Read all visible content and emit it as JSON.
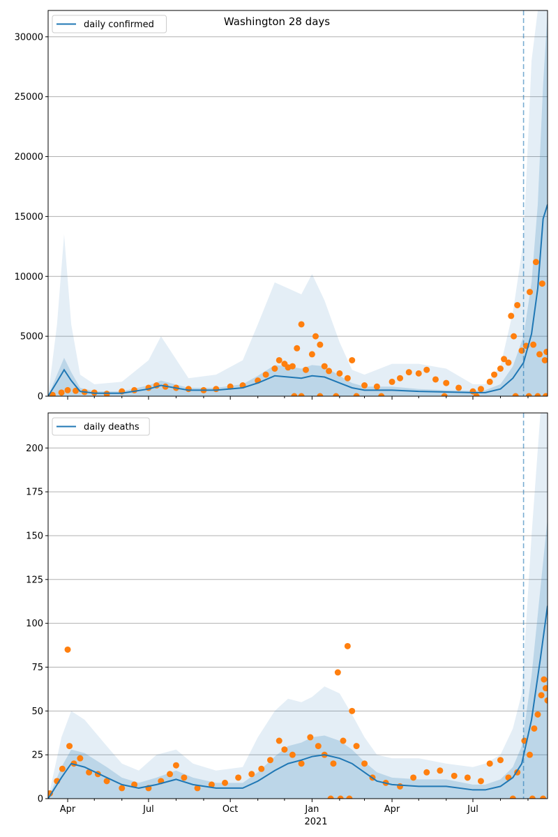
{
  "title": "Washington 28 days",
  "colors": {
    "model": "#1f77b4",
    "observed": "#ff7f0e",
    "band": "#1f77b4",
    "grid": "#b0b0b0",
    "forecast_line": "#1f77b4"
  },
  "x_axis": {
    "month_labels": [
      "Apr",
      "Jul",
      "Oct",
      "Jan",
      "Apr",
      "Jul"
    ],
    "year_label": "2021"
  },
  "forecast_start": "2021-08-27",
  "chart_data": [
    {
      "type": "line",
      "legend": "daily confirmed",
      "ylabel": "",
      "xlim": [
        "2020-03-10",
        "2021-09-23"
      ],
      "ylim": [
        0,
        32200
      ],
      "yticks": [
        0,
        5000,
        10000,
        15000,
        20000,
        25000,
        30000
      ],
      "grid": "horizontal",
      "legend_position": "top-left",
      "model": {
        "x": [
          "2020-03-10",
          "2020-03-20",
          "2020-03-28",
          "2020-04-05",
          "2020-04-15",
          "2020-05-01",
          "2020-06-01",
          "2020-07-01",
          "2020-07-15",
          "2020-08-15",
          "2020-09-15",
          "2020-10-15",
          "2020-11-01",
          "2020-11-20",
          "2020-12-05",
          "2020-12-20",
          "2021-01-01",
          "2021-01-15",
          "2021-02-01",
          "2021-02-15",
          "2021-03-01",
          "2021-04-01",
          "2021-05-01",
          "2021-06-01",
          "2021-07-01",
          "2021-07-15",
          "2021-08-01",
          "2021-08-15",
          "2021-08-27",
          "2021-09-05",
          "2021-09-12",
          "2021-09-18",
          "2021-09-23"
        ],
        "y": [
          0,
          1200,
          2200,
          1300,
          400,
          250,
          250,
          600,
          900,
          500,
          500,
          700,
          1100,
          1700,
          1600,
          1500,
          1700,
          1600,
          1100,
          700,
          500,
          500,
          400,
          350,
          300,
          300,
          600,
          1500,
          2800,
          5200,
          9000,
          14800,
          16000
        ]
      },
      "band_inner": [
        0,
        1800,
        3200,
        2000,
        700,
        400,
        400,
        900,
        1300,
        700,
        700,
        1000,
        1700,
        2600,
        2500,
        2300,
        2600,
        2500,
        1700,
        1100,
        800,
        800,
        600,
        500,
        450,
        500,
        1000,
        2500,
        5000,
        9500,
        16000,
        26000,
        32200
      ],
      "band_outer": [
        0,
        6000,
        13500,
        6000,
        1800,
        1000,
        1200,
        3000,
        5000,
        1500,
        1800,
        3000,
        6000,
        9500,
        9000,
        8500,
        10200,
        8000,
        4500,
        2200,
        1800,
        2700,
        2700,
        2300,
        1000,
        1000,
        2500,
        7000,
        13000,
        28000,
        32200,
        32200,
        32200
      ],
      "observed": {
        "x": [
          "2020-03-15",
          "2020-03-25",
          "2020-04-01",
          "2020-04-10",
          "2020-04-20",
          "2020-05-01",
          "2020-05-15",
          "2020-06-01",
          "2020-06-15",
          "2020-07-01",
          "2020-07-10",
          "2020-07-20",
          "2020-08-01",
          "2020-08-15",
          "2020-09-01",
          "2020-09-15",
          "2020-10-01",
          "2020-10-15",
          "2020-11-01",
          "2020-11-10",
          "2020-11-20",
          "2020-11-25",
          "2020-12-01",
          "2020-12-05",
          "2020-12-10",
          "2020-12-15",
          "2020-12-20",
          "2020-12-25",
          "2021-01-01",
          "2021-01-05",
          "2021-01-10",
          "2021-01-15",
          "2021-01-20",
          "2021-02-01",
          "2021-02-10",
          "2021-02-15",
          "2021-03-01",
          "2021-03-15",
          "2021-04-01",
          "2021-04-10",
          "2021-04-20",
          "2021-05-01",
          "2021-05-10",
          "2021-05-20",
          "2021-06-01",
          "2021-06-15",
          "2021-07-01",
          "2021-07-10",
          "2021-07-20",
          "2021-07-25",
          "2021-08-01",
          "2021-08-05",
          "2021-08-10",
          "2021-08-13",
          "2021-08-16",
          "2021-08-20",
          "2021-08-25",
          "2021-08-30",
          "2021-09-03",
          "2021-09-07",
          "2021-09-10",
          "2021-09-14",
          "2021-09-17",
          "2021-09-20",
          "2021-09-22",
          "2020-12-12",
          "2020-12-20",
          "2021-01-10",
          "2021-01-28",
          "2021-02-20",
          "2021-03-20",
          "2021-05-30",
          "2021-07-05",
          "2021-08-18",
          "2021-09-02",
          "2021-09-12",
          "2021-09-21"
        ],
        "y": [
          100,
          300,
          500,
          450,
          350,
          300,
          200,
          400,
          500,
          700,
          900,
          800,
          700,
          600,
          500,
          600,
          800,
          900,
          1300,
          1800,
          2300,
          3000,
          2700,
          2400,
          2500,
          4000,
          6000,
          2200,
          3500,
          5000,
          4300,
          2500,
          2100,
          1900,
          1500,
          3000,
          900,
          800,
          1200,
          1500,
          2000,
          1900,
          2200,
          1400,
          1100,
          700,
          400,
          600,
          1200,
          1800,
          2300,
          3100,
          2800,
          6700,
          5000,
          7600,
          3800,
          4200,
          8700,
          4300,
          11200,
          3500,
          9400,
          3000,
          3700,
          0,
          0,
          0,
          0,
          0,
          0,
          0,
          0,
          0,
          0,
          0,
          0
        ]
      }
    },
    {
      "type": "line",
      "legend": "daily deaths",
      "ylabel": "",
      "xlim": [
        "2020-03-10",
        "2021-09-23"
      ],
      "ylim": [
        0,
        220
      ],
      "yticks": [
        0,
        25,
        50,
        75,
        100,
        125,
        150,
        175,
        200
      ],
      "grid": "horizontal",
      "legend_position": "top-left",
      "model": {
        "x": [
          "2020-03-10",
          "2020-03-25",
          "2020-04-05",
          "2020-04-20",
          "2020-05-15",
          "2020-06-01",
          "2020-06-20",
          "2020-07-10",
          "2020-08-01",
          "2020-08-20",
          "2020-09-15",
          "2020-10-15",
          "2020-11-01",
          "2020-11-20",
          "2020-12-05",
          "2020-12-20",
          "2021-01-01",
          "2021-01-15",
          "2021-02-01",
          "2021-02-15",
          "2021-03-01",
          "2021-03-15",
          "2021-04-01",
          "2021-05-01",
          "2021-06-01",
          "2021-07-01",
          "2021-07-15",
          "2021-08-01",
          "2021-08-15",
          "2021-08-25",
          "2021-09-05",
          "2021-09-15",
          "2021-09-23"
        ],
        "y": [
          0,
          12,
          20,
          18,
          12,
          8,
          6,
          8,
          11,
          8,
          6,
          6,
          10,
          16,
          20,
          22,
          24,
          25,
          23,
          20,
          15,
          10,
          8,
          7,
          7,
          5,
          5,
          7,
          12,
          20,
          45,
          80,
          110
        ]
      },
      "band_inner": [
        0,
        18,
        28,
        26,
        18,
        12,
        9,
        12,
        16,
        12,
        9,
        9,
        15,
        24,
        30,
        32,
        35,
        36,
        33,
        28,
        21,
        15,
        12,
        11,
        11,
        8,
        8,
        11,
        18,
        30,
        70,
        120,
        160
      ],
      "band_outer": [
        0,
        35,
        50,
        45,
        30,
        20,
        16,
        25,
        28,
        20,
        16,
        18,
        35,
        50,
        57,
        55,
        58,
        64,
        60,
        48,
        35,
        25,
        23,
        23,
        20,
        18,
        20,
        25,
        40,
        60,
        150,
        220,
        220
      ],
      "observed": {
        "x": [
          "2020-03-12",
          "2020-03-20",
          "2020-03-26",
          "2020-04-01",
          "2020-04-03",
          "2020-04-08",
          "2020-04-15",
          "2020-04-25",
          "2020-05-05",
          "2020-05-15",
          "2020-06-01",
          "2020-06-15",
          "2020-07-01",
          "2020-07-15",
          "2020-07-25",
          "2020-08-01",
          "2020-08-10",
          "2020-08-25",
          "2020-09-10",
          "2020-09-25",
          "2020-10-10",
          "2020-10-25",
          "2020-11-05",
          "2020-11-15",
          "2020-11-25",
          "2020-12-01",
          "2020-12-10",
          "2020-12-20",
          "2020-12-30",
          "2021-01-08",
          "2021-01-15",
          "2021-01-25",
          "2021-01-30",
          "2021-02-05",
          "2021-02-10",
          "2021-02-15",
          "2021-02-20",
          "2021-03-01",
          "2021-03-10",
          "2021-03-25",
          "2021-04-10",
          "2021-04-25",
          "2021-05-10",
          "2021-05-25",
          "2021-06-10",
          "2021-06-25",
          "2021-07-10",
          "2021-07-20",
          "2021-08-01",
          "2021-08-10",
          "2021-08-20",
          "2021-08-28",
          "2021-09-03",
          "2021-09-08",
          "2021-09-12",
          "2021-09-16",
          "2021-09-19",
          "2021-09-21",
          "2021-09-23",
          "2021-01-22",
          "2021-02-02",
          "2021-02-12",
          "2021-08-15",
          "2021-09-06",
          "2021-09-18"
        ],
        "y": [
          3,
          10,
          17,
          85,
          30,
          20,
          23,
          15,
          14,
          10,
          6,
          8,
          6,
          10,
          14,
          19,
          12,
          6,
          8,
          9,
          12,
          14,
          17,
          22,
          33,
          28,
          25,
          20,
          35,
          30,
          25,
          20,
          72,
          33,
          87,
          50,
          30,
          20,
          12,
          9,
          7,
          12,
          15,
          16,
          13,
          12,
          10,
          20,
          22,
          12,
          15,
          33,
          25,
          40,
          48,
          59,
          68,
          63,
          56,
          0,
          0,
          0,
          0,
          0,
          0
        ]
      }
    }
  ]
}
